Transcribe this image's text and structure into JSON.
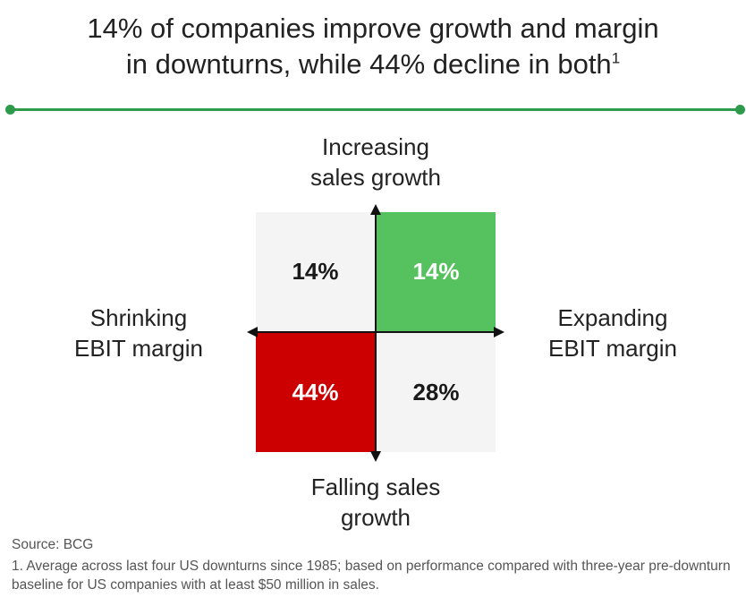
{
  "header": {
    "title_line1": "14% of companies improve growth and margin",
    "title_line2": "in downturns, while 44% decline in both",
    "title_sup": "1"
  },
  "colors": {
    "accent_line": "#2d9b4b",
    "improve_both": "#55c15f",
    "decline_both": "#cc0000",
    "neutral": "#f4f4f4"
  },
  "chart_data": {
    "type": "quadrant",
    "axes": {
      "y_positive": "Increasing sales growth",
      "y_negative": "Falling sales growth",
      "x_positive": "Expanding EBIT margin",
      "x_negative": "Shrinking EBIT margin"
    },
    "quadrants": [
      {
        "position": "top-left",
        "value": 14,
        "label": "14%"
      },
      {
        "position": "top-right",
        "value": 14,
        "label": "14%"
      },
      {
        "position": "bottom-left",
        "value": 44,
        "label": "44%"
      },
      {
        "position": "bottom-right",
        "value": 28,
        "label": "28%"
      }
    ]
  },
  "labels": {
    "top_line1": "Increasing",
    "top_line2": "sales growth",
    "bottom_line1": "Falling sales",
    "bottom_line2": "growth",
    "left_line1": "Shrinking",
    "left_line2": "EBIT margin",
    "right_line1": "Expanding",
    "right_line2": "EBIT margin"
  },
  "footer": {
    "source": "Source: BCG",
    "note": "1. Average across last four US downturns since 1985; based on performance compared with three-year pre-downturn baseline for US companies with at least $50 million in sales."
  }
}
